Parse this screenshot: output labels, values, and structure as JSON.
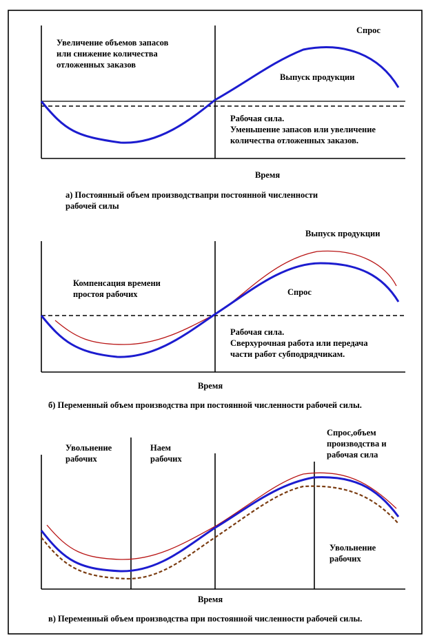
{
  "panel_a": {
    "label_increase": "Увеличение объемов запасов\nили снижение количества\nотложенных заказов",
    "label_demand": "Спрос",
    "label_output": "Выпуск продукции",
    "label_workforce": "Рабочая сила.\nУменьшение запасов или увеличение\nколичества отложенных заказов.",
    "axis_time": "Время",
    "caption": "а) Постоянный объем производствапри постоянной численности\nрабочей силы"
  },
  "panel_b": {
    "label_output": "Выпуск продукции",
    "label_compensation": "Компенсация времени\nпростоя рабочих",
    "label_demand": "Спрос",
    "label_workforce": "Рабочая сила.\nСверхурочная работа или передача\nчасти работ субподрядчикам.",
    "axis_time": "Время",
    "caption": "б) Переменный объем производства при постоянной численности рабочей силы."
  },
  "panel_c": {
    "label_layoff_left": "Увольнение\nрабочих",
    "label_hire": "Наем\nрабочих",
    "label_combined": "Спрос,объем\nпроизводства и\nрабочая сила",
    "label_layoff_right": "Увольнение\nрабочих",
    "axis_time": "Время",
    "caption": "в) Переменный объем производства при постоянной численности рабочей силы."
  },
  "colors": {
    "frame": "#000000",
    "demand_curve": "#1c1ccf",
    "output_curve": "#b81414",
    "workforce_curve": "#7a3b10"
  }
}
